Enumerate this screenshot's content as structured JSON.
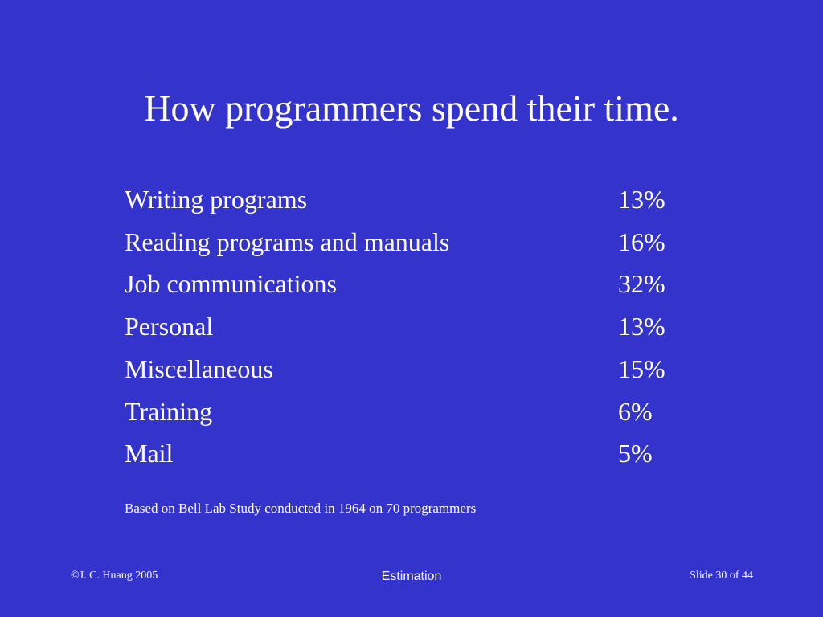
{
  "slide": {
    "title": "How programmers spend their time.",
    "table": {
      "rows": [
        [
          "Writing programs",
          "13%"
        ],
        [
          "Reading programs and manuals",
          "16%"
        ],
        [
          "Job communications",
          "32%"
        ],
        [
          "Personal",
          "13%"
        ],
        [
          "Miscellaneous",
          "15%"
        ],
        [
          "Training",
          "6%"
        ],
        [
          "Mail",
          "5%"
        ]
      ]
    },
    "note": "Based on Bell Lab Study conducted in 1964 on 70 programmers",
    "footer": {
      "left": "©J. C. Huang 2005",
      "center": "Estimation",
      "right": "Slide 30 of 44"
    }
  }
}
